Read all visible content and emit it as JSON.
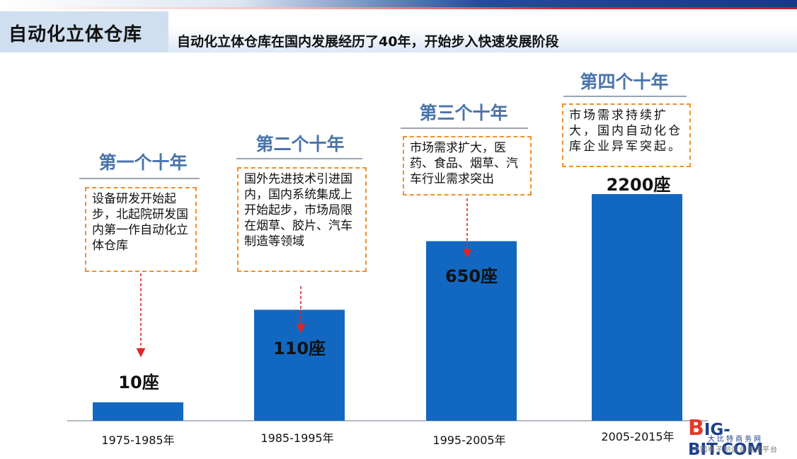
{
  "header": {
    "title": "自动化立体仓库",
    "subtitle": "自动化立体仓库在国内发展经历了40年，开始步入快速发展阶段"
  },
  "colors": {
    "bar": "#1268c0",
    "decade_title": "#4a74ab",
    "note_border": "#f0902a",
    "arrow": "#e02424"
  },
  "chart_data": {
    "type": "bar",
    "categories": [
      "1975-1985年",
      "1985-1995年",
      "1995-2005年",
      "2005-2015年"
    ],
    "values": [
      10,
      110,
      650,
      2200
    ],
    "value_labels": [
      "10座",
      "110座",
      "650座",
      "2200座"
    ],
    "title": "",
    "xlabel": "",
    "ylabel": "",
    "grid": false,
    "decades": [
      "第一个十年",
      "第二个十年",
      "第三个十年",
      "第四个十年"
    ],
    "annotations": [
      "设备研发开始起步，北起院研发国内第一作自动化立体仓库",
      "国外先进技术引进国内，国内系统集成上开始起步，市场局限在烟草、胶片、汽车制造等领域",
      "市场需求扩大，医药、食品、烟草、汽车行业需求突出",
      "市场需求持续扩大，国内自动化仓库企业异军突起。"
    ]
  },
  "watermark": {
    "logo_b": "B",
    "logo_text": "IG-BIT.COM",
    "tagline": "大比特商务网",
    "sub": "中国电子制造业资讯平台"
  }
}
